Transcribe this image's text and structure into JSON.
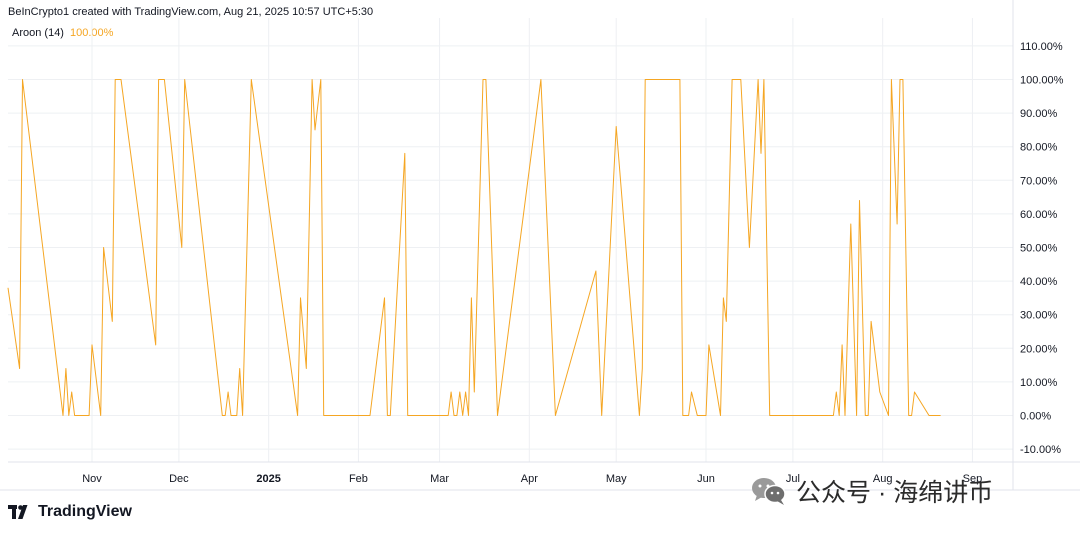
{
  "header": {
    "created_by": "BeInCrypto1 created with TradingView.com, Aug 21, 2025 10:57 UTC+5:30"
  },
  "indicator": {
    "name": "Aroon (14)",
    "value": "100.00%"
  },
  "brand": {
    "name": "TradingView"
  },
  "watermark": {
    "text": "公众号 · 海绵讲币"
  },
  "colors": {
    "line": "#f5a623",
    "grid": "#eef0f3",
    "axis_text": "#131722"
  },
  "chart_data": {
    "type": "line",
    "title": "",
    "xlabel": "",
    "ylabel": "",
    "ylim": [
      -15,
      115
    ],
    "y_ticks": [
      "110.00%",
      "100.00%",
      "90.00%",
      "80.00%",
      "70.00%",
      "60.00%",
      "50.00%",
      "40.00%",
      "30.00%",
      "20.00%",
      "10.00%",
      "0.00%",
      "-10.00%"
    ],
    "x_ticks": [
      {
        "label": "Nov",
        "date": "2024-11-01",
        "bold": false
      },
      {
        "label": "Dec",
        "date": "2024-12-01",
        "bold": false
      },
      {
        "label": "2025",
        "date": "2025-01-01",
        "bold": true
      },
      {
        "label": "Feb",
        "date": "2025-02-01",
        "bold": false
      },
      {
        "label": "Mar",
        "date": "2025-03-01",
        "bold": false
      },
      {
        "label": "Apr",
        "date": "2025-04-01",
        "bold": false
      },
      {
        "label": "May",
        "date": "2025-05-01",
        "bold": false
      },
      {
        "label": "Jun",
        "date": "2025-06-01",
        "bold": false
      },
      {
        "label": "Jul",
        "date": "2025-07-01",
        "bold": false
      },
      {
        "label": "Aug",
        "date": "2025-08-01",
        "bold": false
      },
      {
        "label": "Sep",
        "date": "2025-09-01",
        "bold": false
      }
    ],
    "series": [
      {
        "x": [
          "2024-10-03",
          "2024-10-07",
          "2024-10-08",
          "2024-10-22",
          "2024-10-23",
          "2024-10-24",
          "2024-10-25",
          "2024-10-26",
          "2024-10-27",
          "2024-10-31",
          "2024-11-01",
          "2024-11-04",
          "2024-11-05",
          "2024-11-08",
          "2024-11-09",
          "2024-11-11",
          "2024-11-23",
          "2024-11-24",
          "2024-11-26",
          "2024-12-02",
          "2024-12-03",
          "2024-12-16",
          "2024-12-17",
          "2024-12-18",
          "2024-12-19",
          "2024-12-21",
          "2024-12-22",
          "2024-12-23",
          "2024-12-26",
          "2025-01-11",
          "2025-01-12",
          "2025-01-14",
          "2025-01-16",
          "2025-01-17",
          "2025-01-19",
          "2025-01-20",
          "2025-02-05",
          "2025-02-10",
          "2025-02-11",
          "2025-02-12",
          "2025-02-17",
          "2025-02-18",
          "2025-02-19",
          "2025-03-04",
          "2025-03-05",
          "2025-03-06",
          "2025-03-07",
          "2025-03-08",
          "2025-03-09",
          "2025-03-10",
          "2025-03-11",
          "2025-03-12",
          "2025-03-13",
          "2025-03-16",
          "2025-03-17",
          "2025-03-21",
          "2025-04-05",
          "2025-04-10",
          "2025-04-24",
          "2025-04-26",
          "2025-05-01",
          "2025-05-09",
          "2025-05-10",
          "2025-05-11",
          "2025-05-23",
          "2025-05-24",
          "2025-05-26",
          "2025-05-27",
          "2025-05-29",
          "2025-06-01",
          "2025-06-02",
          "2025-06-06",
          "2025-06-07",
          "2025-06-08",
          "2025-06-10",
          "2025-06-13",
          "2025-06-16",
          "2025-06-19",
          "2025-06-20",
          "2025-06-21",
          "2025-06-23",
          "2025-07-11",
          "2025-07-15",
          "2025-07-16",
          "2025-07-17",
          "2025-07-18",
          "2025-07-19",
          "2025-07-21",
          "2025-07-23",
          "2025-07-24",
          "2025-07-26",
          "2025-07-27",
          "2025-07-28",
          "2025-07-31",
          "2025-08-03",
          "2025-08-04",
          "2025-08-06",
          "2025-08-07",
          "2025-08-08",
          "2025-08-10",
          "2025-08-11",
          "2025-08-12",
          "2025-08-17",
          "2025-08-19",
          "2025-08-20",
          "2025-08-21"
        ],
        "values": [
          38,
          14,
          100,
          0,
          14,
          0,
          7,
          0,
          0,
          0,
          21,
          0,
          50,
          28,
          100,
          100,
          21,
          100,
          100,
          50,
          100,
          0,
          0,
          7,
          0,
          0,
          14,
          0,
          100,
          0,
          35,
          14,
          100,
          85,
          100,
          0,
          0,
          35,
          0,
          0,
          78,
          0,
          0,
          0,
          7,
          0,
          0,
          7,
          0,
          7,
          0,
          35,
          7,
          100,
          100,
          0,
          100,
          0,
          43,
          0,
          86,
          0,
          14,
          100,
          100,
          0,
          0,
          7,
          0,
          0,
          21,
          0,
          35,
          28,
          100,
          100,
          50,
          100,
          78,
          100,
          0,
          0,
          0,
          7,
          0,
          21,
          0,
          57,
          0,
          64,
          0,
          0,
          28,
          7,
          0,
          100,
          57,
          100,
          100,
          0,
          0,
          7,
          0,
          0,
          0,
          0
        ]
      }
    ]
  }
}
